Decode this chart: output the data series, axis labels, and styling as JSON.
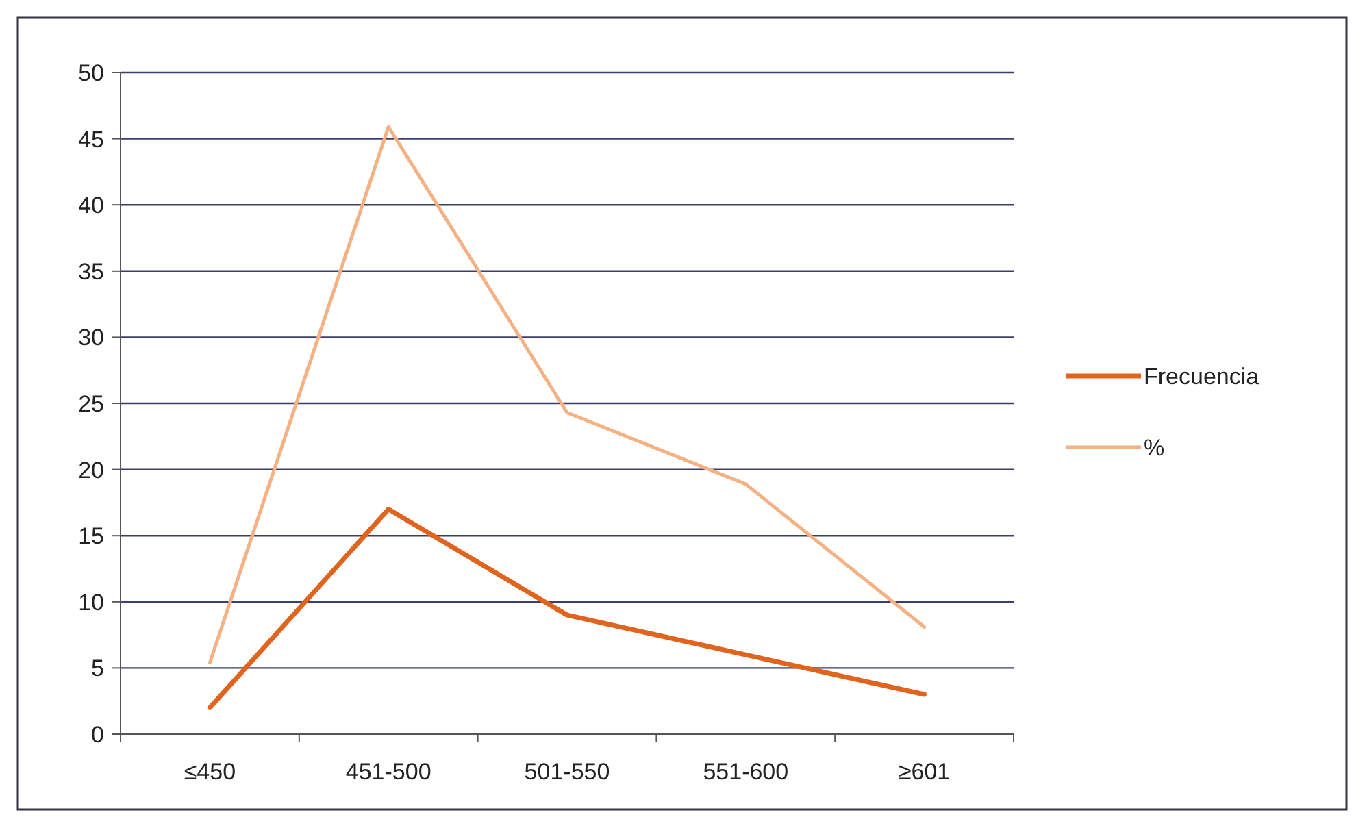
{
  "chart_data": {
    "type": "line",
    "categories": [
      "≤450",
      "451-500",
      "501-550",
      "551-600",
      "≥601"
    ],
    "series": [
      {
        "name": "Frecuencia",
        "color": "#e0641e",
        "values": [
          2,
          17,
          9,
          6,
          3
        ]
      },
      {
        "name": "%",
        "color": "#f4b183",
        "values": [
          5.4,
          45.9,
          24.3,
          18.9,
          8.1
        ]
      }
    ],
    "ylim": [
      0,
      50
    ],
    "yticks": [
      0,
      5,
      10,
      15,
      20,
      25,
      30,
      35,
      40,
      45,
      50
    ],
    "grid": "y",
    "legend": "right",
    "marker": "none",
    "line_style": "solid"
  }
}
